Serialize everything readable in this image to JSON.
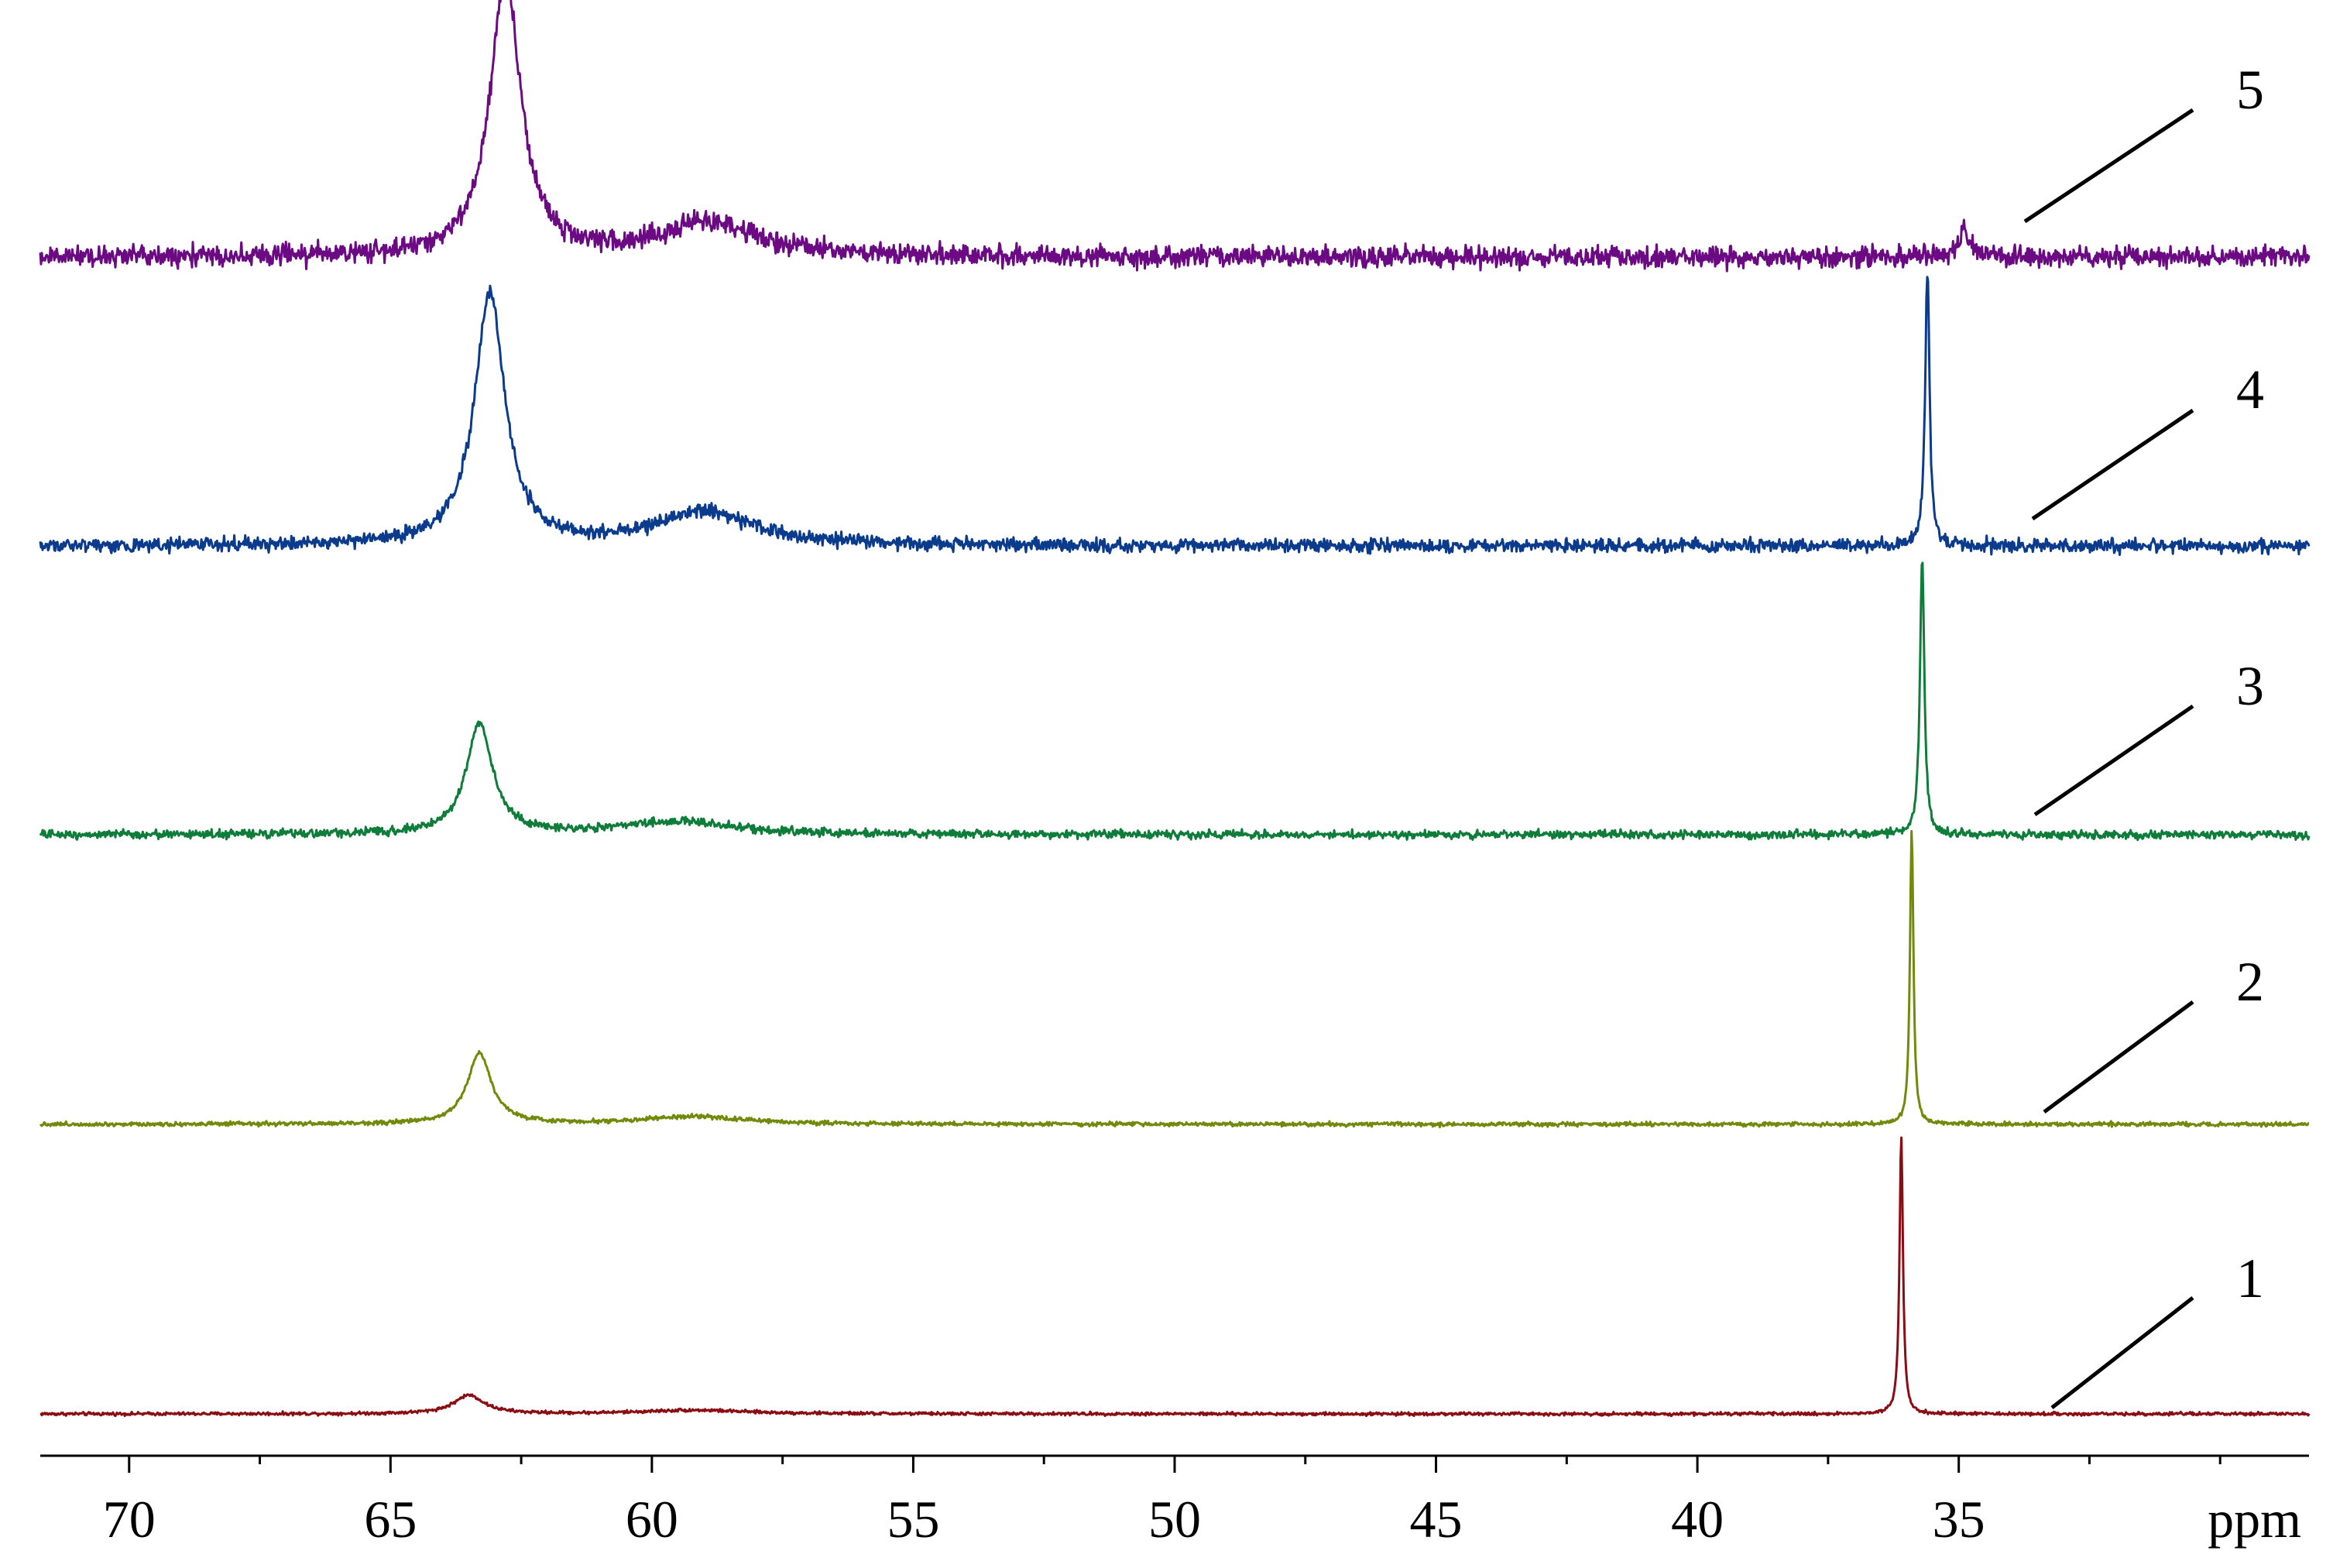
{
  "chart_data": {
    "type": "line",
    "title": "",
    "xlabel": "ppm",
    "ylabel": "",
    "xlim": [
      71.7,
      28.3
    ],
    "x_direction": "descending",
    "x_ticks": [
      70,
      65,
      60,
      55,
      50,
      45,
      40,
      35
    ],
    "x_tick_labels": [
      "70",
      "65",
      "60",
      "55",
      "50",
      "45",
      "40",
      "35"
    ],
    "axis_unit_label": "ppm",
    "grid": false,
    "legend": "none",
    "series": [
      {
        "name": "1",
        "color": "#8b0d14",
        "noise": 0.6,
        "peaks": [
          {
            "center": 63.5,
            "height": 10,
            "width": 0.35
          },
          {
            "center": 59.2,
            "height": 2,
            "width": 1.2
          },
          {
            "center": 36.1,
            "height": 150,
            "width": 0.04
          }
        ]
      },
      {
        "name": "2",
        "color": "#718a0a",
        "noise": 0.8,
        "peaks": [
          {
            "center": 63.3,
            "height": 38,
            "width": 0.28
          },
          {
            "center": 59.2,
            "height": 4,
            "width": 1.2
          },
          {
            "center": 35.9,
            "height": 158,
            "width": 0.04
          }
        ]
      },
      {
        "name": "3",
        "color": "#0e7d3a",
        "noise": 1.6,
        "peaks": [
          {
            "center": 63.3,
            "height": 60,
            "width": 0.3
          },
          {
            "center": 59.5,
            "height": 7,
            "width": 1.3
          },
          {
            "center": 35.7,
            "height": 150,
            "width": 0.05
          }
        ]
      },
      {
        "name": "4",
        "color": "#0b3b8c",
        "noise": 2.6,
        "peaks": [
          {
            "center": 63.1,
            "height": 135,
            "width": 0.35
          },
          {
            "center": 59.0,
            "height": 18,
            "width": 1.1
          },
          {
            "center": 35.6,
            "height": 148,
            "width": 0.05
          }
        ]
      },
      {
        "name": "5",
        "color": "#6b0a83",
        "noise": 4.0,
        "peaks": [
          {
            "center": 62.8,
            "height": 150,
            "width": 0.35
          },
          {
            "center": 58.9,
            "height": 18,
            "width": 1.1
          },
          {
            "center": 34.9,
            "height": 15,
            "width": 0.1
          }
        ]
      }
    ],
    "annotations": [
      "1",
      "2",
      "3",
      "4",
      "5"
    ]
  }
}
